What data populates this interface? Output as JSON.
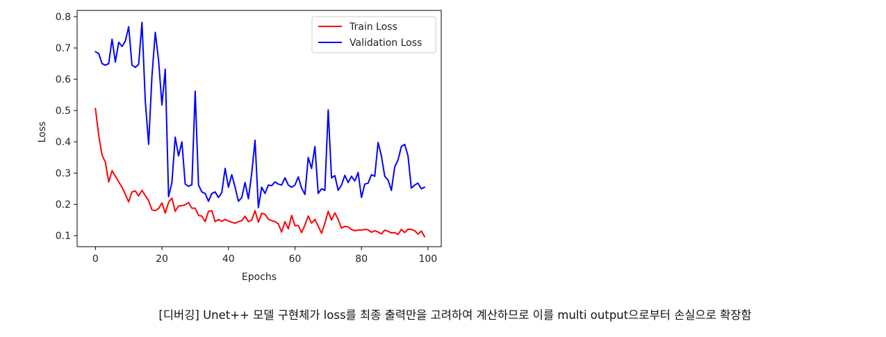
{
  "chart_data": {
    "type": "line",
    "xlabel": "Epochs",
    "ylabel": "Loss",
    "xlim": [
      -5.5,
      104
    ],
    "ylim": [
      0.065,
      0.82
    ],
    "xticks": [
      0,
      20,
      40,
      60,
      80,
      100
    ],
    "xtick_labels": [
      "0",
      "20",
      "40",
      "60",
      "80",
      "100"
    ],
    "yticks": [
      0.1,
      0.2,
      0.3,
      0.4,
      0.5,
      0.6,
      0.7,
      0.8
    ],
    "ytick_labels": [
      "0.1",
      "0.2",
      "0.3",
      "0.4",
      "0.5",
      "0.6",
      "0.7",
      "0.8"
    ],
    "grid": false,
    "legend_position": "top-right",
    "series": [
      {
        "name": "Train Loss",
        "color": "#ff0000",
        "values": [
          0.507,
          0.42,
          0.357,
          0.335,
          0.272,
          0.308,
          0.29,
          0.272,
          0.255,
          0.232,
          0.208,
          0.24,
          0.243,
          0.227,
          0.245,
          0.228,
          0.212,
          0.183,
          0.18,
          0.187,
          0.205,
          0.172,
          0.207,
          0.22,
          0.178,
          0.195,
          0.196,
          0.199,
          0.206,
          0.188,
          0.188,
          0.165,
          0.163,
          0.145,
          0.178,
          0.18,
          0.145,
          0.152,
          0.146,
          0.152,
          0.147,
          0.143,
          0.14,
          0.145,
          0.148,
          0.162,
          0.145,
          0.15,
          0.18,
          0.143,
          0.172,
          0.168,
          0.153,
          0.148,
          0.145,
          0.138,
          0.112,
          0.145,
          0.122,
          0.165,
          0.132,
          0.133,
          0.11,
          0.134,
          0.163,
          0.14,
          0.152,
          0.13,
          0.108,
          0.14,
          0.178,
          0.15,
          0.173,
          0.152,
          0.124,
          0.13,
          0.128,
          0.12,
          0.116,
          0.118,
          0.118,
          0.12,
          0.119,
          0.111,
          0.116,
          0.112,
          0.106,
          0.118,
          0.114,
          0.109,
          0.11,
          0.104,
          0.12,
          0.11,
          0.121,
          0.12,
          0.116,
          0.105,
          0.115,
          0.097
        ]
      },
      {
        "name": "Validation Loss",
        "color": "#0000ff",
        "values": [
          0.688,
          0.682,
          0.65,
          0.645,
          0.65,
          0.728,
          0.655,
          0.718,
          0.705,
          0.722,
          0.768,
          0.645,
          0.638,
          0.648,
          0.782,
          0.53,
          0.392,
          0.61,
          0.75,
          0.66,
          0.518,
          0.632,
          0.225,
          0.27,
          0.415,
          0.355,
          0.4,
          0.265,
          0.258,
          0.263,
          0.562,
          0.262,
          0.24,
          0.235,
          0.21,
          0.235,
          0.24,
          0.222,
          0.238,
          0.315,
          0.255,
          0.295,
          0.255,
          0.21,
          0.222,
          0.27,
          0.218,
          0.3,
          0.405,
          0.19,
          0.255,
          0.235,
          0.262,
          0.26,
          0.272,
          0.265,
          0.262,
          0.285,
          0.262,
          0.255,
          0.262,
          0.288,
          0.252,
          0.232,
          0.35,
          0.315,
          0.385,
          0.235,
          0.25,
          0.245,
          0.502,
          0.285,
          0.292,
          0.245,
          0.262,
          0.293,
          0.27,
          0.29,
          0.275,
          0.302,
          0.222,
          0.265,
          0.268,
          0.295,
          0.29,
          0.398,
          0.355,
          0.29,
          0.278,
          0.245,
          0.32,
          0.342,
          0.385,
          0.392,
          0.355,
          0.252,
          0.262,
          0.268,
          0.25,
          0.255
        ]
      }
    ]
  },
  "caption": "[디버깅] Unet++ 모델 구현체가 loss를 최종 출력만을 고려하여 계산하므로 이를 multi output으로부터 손실으로 확장함"
}
